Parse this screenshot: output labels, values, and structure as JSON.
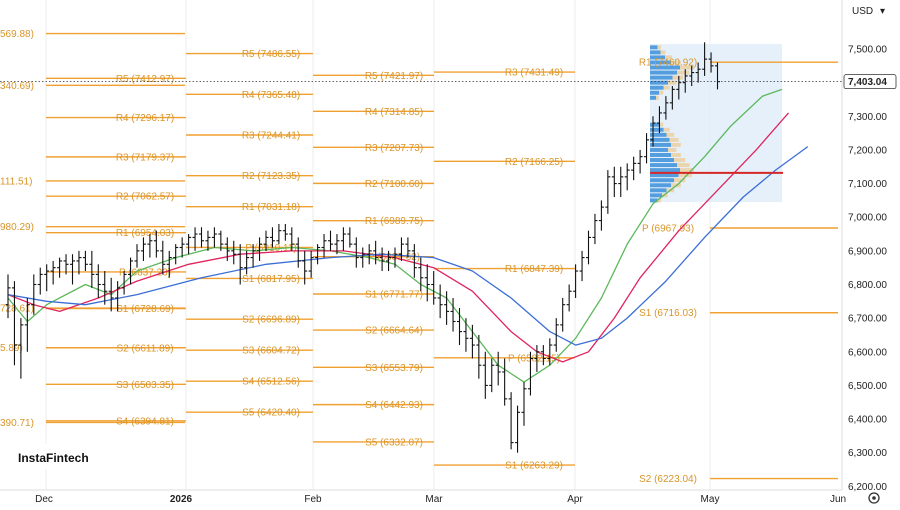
{
  "chart_data": {
    "type": "ohlc",
    "currency": "USD",
    "last_price": "7,403.04",
    "y_ticks": [
      "7,500.00",
      "7,400.00",
      "7,300.00",
      "7,200.00",
      "7,100.00",
      "7,000.00",
      "6,900.00",
      "6,800.00",
      "6,700.00",
      "6,600.00",
      "6,500.00",
      "6,400.00",
      "6,300.00",
      "6,200.00"
    ],
    "x_ticks": [
      {
        "label": "Dec",
        "bold": false
      },
      {
        "label": "2026",
        "bold": true
      },
      {
        "label": "Feb",
        "bold": false
      },
      {
        "label": "Mar",
        "bold": false
      },
      {
        "label": "Apr",
        "bold": false
      },
      {
        "label": "May",
        "bold": false
      },
      {
        "label": "Jun",
        "bold": false
      }
    ],
    "ylim": [
      6180,
      7580
    ],
    "colors": {
      "pivot": "#f0a030",
      "pivot_text": "#d9952a",
      "ma_fast": "#5cb85c",
      "ma_mid": "#e0245e",
      "ma_slow": "#3b6fd6",
      "poc": "#d62728",
      "bars": "#111111",
      "profile": "#3b8ed8",
      "profile_box": "#dcebf9"
    },
    "pivot_groups": [
      {
        "period": "Nov",
        "levels": [
          {
            "label": "569.88)",
            "value": 7546
          },
          {
            "label": "340.69)",
            "value": 7392
          },
          {
            "label": "111.51)",
            "value": 7108
          },
          {
            "label": "980.29)",
            "value": 6972
          },
          {
            "label": "728.61)",
            "value": 6730
          },
          {
            "label": "5.89)",
            "value": 6612
          },
          {
            "label": "390.71)",
            "value": 6390
          }
        ]
      },
      {
        "period": "Dec",
        "levels": [
          {
            "label": "R5 (7412.97)",
            "value": 7412.97
          },
          {
            "label": "R4 (7296.17)",
            "value": 7296.17
          },
          {
            "label": "R3 (7179.37)",
            "value": 7179.37
          },
          {
            "label": "R2 (7062.57)",
            "value": 7062.57
          },
          {
            "label": "R1 (6954.03)",
            "value": 6954.03
          },
          {
            "label": "P (6837.23)",
            "value": 6837.23
          },
          {
            "label": "S1 (6728.69)",
            "value": 6728.69
          },
          {
            "label": "S2 (6611.89)",
            "value": 6611.89
          },
          {
            "label": "S3 (6503.35)",
            "value": 6503.35
          },
          {
            "label": "S4 (6394.81)",
            "value": 6394.81
          }
        ]
      },
      {
        "period": "Jan",
        "levels": [
          {
            "label": "R5 (7486.55)",
            "value": 7486.55
          },
          {
            "label": "R4 (7365.48)",
            "value": 7365.48
          },
          {
            "label": "R3 (7244.41)",
            "value": 7244.41
          },
          {
            "label": "R2 (7123.35)",
            "value": 7123.35
          },
          {
            "label": "R1 (7031.18)",
            "value": 7031.18
          },
          {
            "label": "P (6910.11)",
            "value": 6910.11
          },
          {
            "label": "S1 (6817.95)",
            "value": 6817.95
          },
          {
            "label": "S2 (6696.89)",
            "value": 6696.89
          },
          {
            "label": "S3 (6604.72)",
            "value": 6604.72
          },
          {
            "label": "S4 (6512.56)",
            "value": 6512.56
          },
          {
            "label": "S5 (6420.40)",
            "value": 6420.4
          }
        ]
      },
      {
        "period": "Feb",
        "levels": [
          {
            "label": "R5 (7421.97)",
            "value": 7421.97
          },
          {
            "label": "R4 (7314.85)",
            "value": 7314.85
          },
          {
            "label": "R3 (7207.73)",
            "value": 7207.73
          },
          {
            "label": "R2 (7100.60)",
            "value": 7100.6
          },
          {
            "label": "R1 (6989.75)",
            "value": 6989.75
          },
          {
            "label": "P (6882.62)",
            "value": 6882.62
          },
          {
            "label": "S1 (6771.77)",
            "value": 6771.77
          },
          {
            "label": "S2 (6664.64)",
            "value": 6664.64
          },
          {
            "label": "S3 (6553.79)",
            "value": 6553.79
          },
          {
            "label": "S4 (6442.93)",
            "value": 6442.93
          },
          {
            "label": "S5 (6332.07)",
            "value": 6332.07
          }
        ]
      },
      {
        "period": "Mar",
        "levels": [
          {
            "label": "R3 (7431.49)",
            "value": 7431.49
          },
          {
            "label": "R2 (7166.25)",
            "value": 7166.25
          },
          {
            "label": "R1 (6847.39)",
            "value": 6847.39
          },
          {
            "label": "P (6582.15)",
            "value": 6582.15
          },
          {
            "label": "S1 (6263.29)",
            "value": 6263.29
          }
        ]
      },
      {
        "period": "Apr",
        "levels": [
          {
            "label": "R1 (7460.92)",
            "value": 7460.92
          },
          {
            "label": "P (6967.93)",
            "value": 6967.93
          },
          {
            "label": "S1 (6716.03)",
            "value": 6716.03
          },
          {
            "label": "S2 (6223.04)",
            "value": 6223.04
          }
        ]
      }
    ],
    "bars": [
      [
        6740,
        6830,
        6700,
        6790
      ],
      [
        6790,
        6810,
        6560,
        6620
      ],
      [
        6620,
        6700,
        6520,
        6680
      ],
      [
        6680,
        6760,
        6600,
        6740
      ],
      [
        6740,
        6830,
        6710,
        6800
      ],
      [
        6800,
        6850,
        6770,
        6830
      ],
      [
        6830,
        6860,
        6780,
        6840
      ],
      [
        6840,
        6870,
        6800,
        6850
      ],
      [
        6850,
        6880,
        6820,
        6870
      ],
      [
        6870,
        6890,
        6830,
        6860
      ],
      [
        6860,
        6890,
        6800,
        6870
      ],
      [
        6870,
        6900,
        6830,
        6880
      ],
      [
        6880,
        6900,
        6840,
        6860
      ],
      [
        6860,
        6900,
        6790,
        6830
      ],
      [
        6830,
        6860,
        6760,
        6800
      ],
      [
        6800,
        6840,
        6740,
        6780
      ],
      [
        6780,
        6820,
        6720,
        6760
      ],
      [
        6760,
        6810,
        6720,
        6790
      ],
      [
        6790,
        6840,
        6770,
        6830
      ],
      [
        6830,
        6880,
        6800,
        6870
      ],
      [
        6870,
        6920,
        6850,
        6900
      ],
      [
        6900,
        6940,
        6870,
        6920
      ],
      [
        6920,
        6950,
        6880,
        6930
      ],
      [
        6930,
        6960,
        6880,
        6900
      ],
      [
        6900,
        6930,
        6830,
        6860
      ],
      [
        6860,
        6900,
        6820,
        6880
      ],
      [
        6880,
        6920,
        6860,
        6910
      ],
      [
        6910,
        6940,
        6880,
        6920
      ],
      [
        6920,
        6950,
        6890,
        6940
      ],
      [
        6940,
        6970,
        6900,
        6950
      ],
      [
        6950,
        6970,
        6910,
        6930
      ],
      [
        6930,
        6960,
        6900,
        6940
      ],
      [
        6940,
        6970,
        6910,
        6950
      ],
      [
        6950,
        6960,
        6900,
        6920
      ],
      [
        6920,
        6940,
        6870,
        6900
      ],
      [
        6900,
        6930,
        6860,
        6890
      ],
      [
        6890,
        6920,
        6800,
        6850
      ],
      [
        6850,
        6900,
        6830,
        6880
      ],
      [
        6880,
        6920,
        6850,
        6900
      ],
      [
        6900,
        6940,
        6870,
        6920
      ],
      [
        6920,
        6960,
        6900,
        6940
      ],
      [
        6940,
        6970,
        6910,
        6930
      ],
      [
        6930,
        6980,
        6920,
        6960
      ],
      [
        6960,
        6980,
        6930,
        6950
      ],
      [
        6950,
        6970,
        6900,
        6920
      ],
      [
        6920,
        6940,
        6850,
        6870
      ],
      [
        6870,
        6900,
        6800,
        6840
      ],
      [
        6840,
        6900,
        6820,
        6880
      ],
      [
        6880,
        6920,
        6860,
        6910
      ],
      [
        6910,
        6950,
        6880,
        6930
      ],
      [
        6930,
        6960,
        6900,
        6920
      ],
      [
        6920,
        6950,
        6890,
        6930
      ],
      [
        6930,
        6970,
        6900,
        6950
      ],
      [
        6950,
        6970,
        6910,
        6920
      ],
      [
        6920,
        6940,
        6850,
        6880
      ],
      [
        6880,
        6910,
        6850,
        6890
      ],
      [
        6890,
        6920,
        6860,
        6900
      ],
      [
        6900,
        6930,
        6860,
        6880
      ],
      [
        6880,
        6910,
        6840,
        6870
      ],
      [
        6870,
        6900,
        6840,
        6880
      ],
      [
        6880,
        6910,
        6850,
        6890
      ],
      [
        6890,
        6940,
        6870,
        6920
      ],
      [
        6920,
        6940,
        6880,
        6900
      ],
      [
        6900,
        6920,
        6820,
        6850
      ],
      [
        6850,
        6880,
        6780,
        6820
      ],
      [
        6820,
        6860,
        6750,
        6800
      ],
      [
        6800,
        6840,
        6740,
        6760
      ],
      [
        6760,
        6800,
        6700,
        6740
      ],
      [
        6740,
        6780,
        6680,
        6720
      ],
      [
        6720,
        6760,
        6660,
        6690
      ],
      [
        6690,
        6730,
        6620,
        6660
      ],
      [
        6660,
        6700,
        6600,
        6640
      ],
      [
        6640,
        6680,
        6580,
        6620
      ],
      [
        6620,
        6650,
        6520,
        6560
      ],
      [
        6560,
        6600,
        6460,
        6500
      ],
      [
        6500,
        6580,
        6480,
        6560
      ],
      [
        6560,
        6600,
        6500,
        6540
      ],
      [
        6540,
        6580,
        6440,
        6460
      ],
      [
        6460,
        6480,
        6310,
        6330
      ],
      [
        6330,
        6440,
        6300,
        6420
      ],
      [
        6420,
        6510,
        6380,
        6490
      ],
      [
        6490,
        6600,
        6470,
        6580
      ],
      [
        6580,
        6620,
        6540,
        6600
      ],
      [
        6600,
        6620,
        6560,
        6580
      ],
      [
        6580,
        6640,
        6560,
        6620
      ],
      [
        6620,
        6700,
        6600,
        6680
      ],
      [
        6680,
        6760,
        6660,
        6740
      ],
      [
        6740,
        6800,
        6720,
        6780
      ],
      [
        6780,
        6860,
        6760,
        6840
      ],
      [
        6840,
        6900,
        6810,
        6880
      ],
      [
        6880,
        6960,
        6860,
        6940
      ],
      [
        6940,
        7010,
        6920,
        6990
      ],
      [
        6990,
        7050,
        6960,
        7030
      ],
      [
        7030,
        7140,
        7010,
        7120
      ],
      [
        7120,
        7150,
        7060,
        7100
      ],
      [
        7100,
        7150,
        7060,
        7120
      ],
      [
        7120,
        7160,
        7080,
        7140
      ],
      [
        7140,
        7180,
        7110,
        7160
      ],
      [
        7160,
        7200,
        7130,
        7180
      ],
      [
        7180,
        7250,
        7160,
        7230
      ],
      [
        7230,
        7300,
        7210,
        7280
      ],
      [
        7280,
        7330,
        7250,
        7310
      ],
      [
        7310,
        7360,
        7290,
        7340
      ],
      [
        7340,
        7390,
        7320,
        7380
      ],
      [
        7380,
        7420,
        7350,
        7400
      ],
      [
        7400,
        7440,
        7370,
        7420
      ],
      [
        7420,
        7450,
        7390,
        7430
      ],
      [
        7430,
        7460,
        7400,
        7440
      ],
      [
        7440,
        7520,
        7420,
        7470
      ],
      [
        7470,
        7490,
        7430,
        7450
      ],
      [
        7450,
        7460,
        7380,
        7403
      ]
    ],
    "ma": [
      {
        "key": "ma_fast",
        "pts": [
          [
            0,
            6760
          ],
          [
            3,
            6690
          ],
          [
            6,
            6740
          ],
          [
            12,
            6800
          ],
          [
            16,
            6770
          ],
          [
            20,
            6840
          ],
          [
            26,
            6880
          ],
          [
            32,
            6910
          ],
          [
            38,
            6900
          ],
          [
            44,
            6910
          ],
          [
            50,
            6900
          ],
          [
            56,
            6880
          ],
          [
            60,
            6860
          ],
          [
            64,
            6800
          ],
          [
            68,
            6760
          ],
          [
            72,
            6660
          ],
          [
            76,
            6560
          ],
          [
            80,
            6510
          ],
          [
            84,
            6560
          ],
          [
            88,
            6640
          ],
          [
            92,
            6760
          ],
          [
            96,
            6920
          ],
          [
            100,
            7040
          ],
          [
            104,
            7100
          ],
          [
            108,
            7180
          ],
          [
            112,
            7270
          ],
          [
            117,
            7360
          ],
          [
            120,
            7380
          ]
        ]
      },
      {
        "key": "ma_mid",
        "pts": [
          [
            0,
            6770
          ],
          [
            4,
            6740
          ],
          [
            8,
            6720
          ],
          [
            14,
            6760
          ],
          [
            20,
            6810
          ],
          [
            28,
            6860
          ],
          [
            36,
            6890
          ],
          [
            44,
            6900
          ],
          [
            52,
            6900
          ],
          [
            60,
            6880
          ],
          [
            66,
            6850
          ],
          [
            72,
            6780
          ],
          [
            78,
            6660
          ],
          [
            82,
            6600
          ],
          [
            86,
            6570
          ],
          [
            90,
            6600
          ],
          [
            94,
            6700
          ],
          [
            98,
            6820
          ],
          [
            104,
            6960
          ],
          [
            110,
            7080
          ],
          [
            116,
            7200
          ],
          [
            121,
            7310
          ]
        ]
      },
      {
        "key": "ma_slow",
        "pts": [
          [
            0,
            6770
          ],
          [
            6,
            6750
          ],
          [
            12,
            6740
          ],
          [
            20,
            6770
          ],
          [
            30,
            6820
          ],
          [
            40,
            6860
          ],
          [
            50,
            6880
          ],
          [
            58,
            6890
          ],
          [
            66,
            6880
          ],
          [
            72,
            6840
          ],
          [
            78,
            6760
          ],
          [
            84,
            6660
          ],
          [
            88,
            6620
          ],
          [
            92,
            6640
          ],
          [
            96,
            6700
          ],
          [
            102,
            6810
          ],
          [
            108,
            6940
          ],
          [
            114,
            7060
          ],
          [
            119,
            7140
          ],
          [
            124,
            7210
          ]
        ]
      }
    ],
    "poc_value": 7132,
    "volume_profile": [
      [
        7505,
        0.25
      ],
      [
        7490,
        0.35
      ],
      [
        7475,
        0.5
      ],
      [
        7460,
        0.7
      ],
      [
        7445,
        1.0
      ],
      [
        7430,
        0.9
      ],
      [
        7415,
        0.75
      ],
      [
        7400,
        0.6
      ],
      [
        7385,
        0.45
      ],
      [
        7370,
        0.3
      ],
      [
        7355,
        0.2
      ],
      [
        7275,
        0.3
      ],
      [
        7260,
        0.45
      ],
      [
        7245,
        0.55
      ],
      [
        7230,
        0.65
      ],
      [
        7215,
        0.7
      ],
      [
        7200,
        0.6
      ],
      [
        7185,
        0.7
      ],
      [
        7170,
        0.8
      ],
      [
        7155,
        0.9
      ],
      [
        7140,
        1.0
      ],
      [
        7125,
        0.95
      ],
      [
        7110,
        0.8
      ],
      [
        7095,
        0.7
      ],
      [
        7080,
        0.55
      ],
      [
        7065,
        0.4
      ],
      [
        7050,
        0.25
      ]
    ],
    "branding": "InstaFintech"
  }
}
